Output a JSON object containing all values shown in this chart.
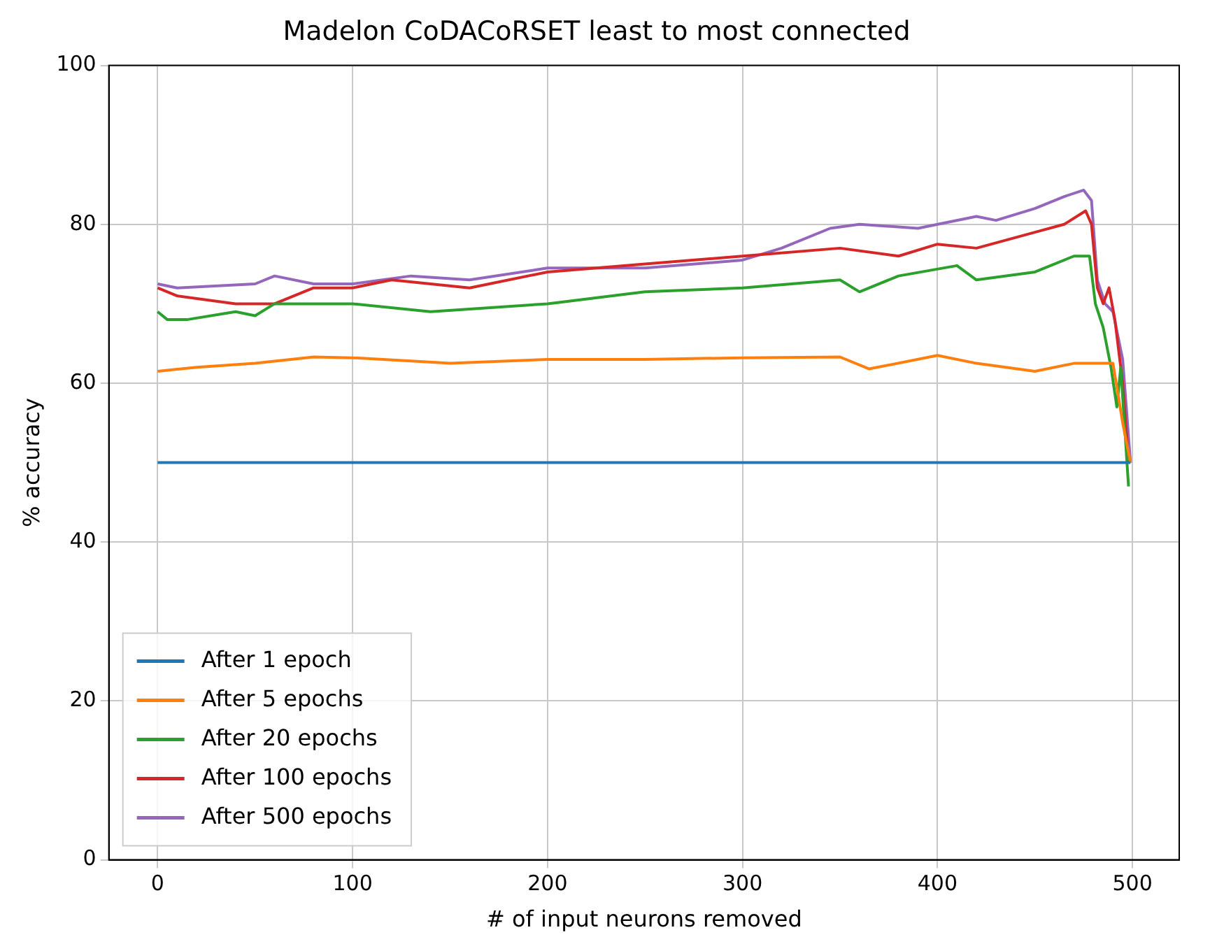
{
  "chart_data": {
    "type": "line",
    "title": "Madelon CoDACoRSET least to most connected",
    "xlabel": "# of input neurons removed",
    "ylabel": "% accuracy",
    "xlim": [
      -25,
      524
    ],
    "xticks": [
      0,
      100,
      200,
      300,
      400,
      500
    ],
    "ylim": [
      0,
      100
    ],
    "yticks": [
      0,
      20,
      40,
      60,
      80,
      100
    ],
    "grid": true,
    "legend": "bottom left",
    "series": [
      {
        "name": "After 1 epoch",
        "color": "#1f77b4",
        "x": [
          0,
          250,
          499
        ],
        "values": [
          50,
          50,
          50
        ]
      },
      {
        "name": "After 5 epochs",
        "color": "#ff7f0e",
        "x": [
          0,
          20,
          50,
          80,
          100,
          130,
          150,
          200,
          250,
          300,
          350,
          365,
          400,
          420,
          450,
          470,
          490,
          495,
          499
        ],
        "values": [
          61.5,
          62,
          62.5,
          63.3,
          63.2,
          62.8,
          62.5,
          63,
          63,
          63.2,
          63.3,
          61.8,
          63.5,
          62.5,
          61.5,
          62.5,
          62.5,
          55,
          50
        ]
      },
      {
        "name": "After 20 epochs",
        "color": "#2ca02c",
        "x": [
          0,
          5,
          15,
          40,
          50,
          60,
          100,
          140,
          200,
          250,
          300,
          350,
          360,
          380,
          410,
          420,
          450,
          470,
          478,
          481,
          485,
          489,
          492,
          494,
          498
        ],
        "values": [
          69,
          68,
          68,
          69,
          68.5,
          70,
          70,
          69,
          70,
          71.5,
          72,
          73,
          71.5,
          73.5,
          74.8,
          73,
          74,
          76,
          76,
          70,
          67,
          62,
          57,
          62,
          47
        ]
      },
      {
        "name": "After 100 epochs",
        "color": "#d62728",
        "x": [
          0,
          10,
          40,
          60,
          80,
          100,
          120,
          160,
          200,
          250,
          300,
          350,
          380,
          400,
          420,
          450,
          465,
          476,
          479,
          482,
          485,
          488,
          491,
          495,
          498
        ],
        "values": [
          72,
          71,
          70,
          70,
          72,
          72,
          73,
          72,
          74,
          75,
          76,
          77,
          76,
          77.5,
          77,
          79,
          80,
          81.7,
          80,
          72,
          70,
          72,
          68,
          60,
          50
        ]
      },
      {
        "name": "After 500 epochs",
        "color": "#9467bd",
        "x": [
          0,
          10,
          50,
          60,
          80,
          100,
          130,
          160,
          200,
          250,
          300,
          320,
          345,
          360,
          390,
          420,
          430,
          450,
          465,
          475,
          479,
          482,
          486,
          490,
          495,
          499
        ],
        "values": [
          72.5,
          72,
          72.5,
          73.5,
          72.5,
          72.5,
          73.5,
          73,
          74.5,
          74.5,
          75.5,
          77,
          79.5,
          80,
          79.5,
          81,
          80.5,
          82,
          83.5,
          84.3,
          83,
          73,
          70,
          69,
          63,
          50
        ]
      }
    ]
  }
}
